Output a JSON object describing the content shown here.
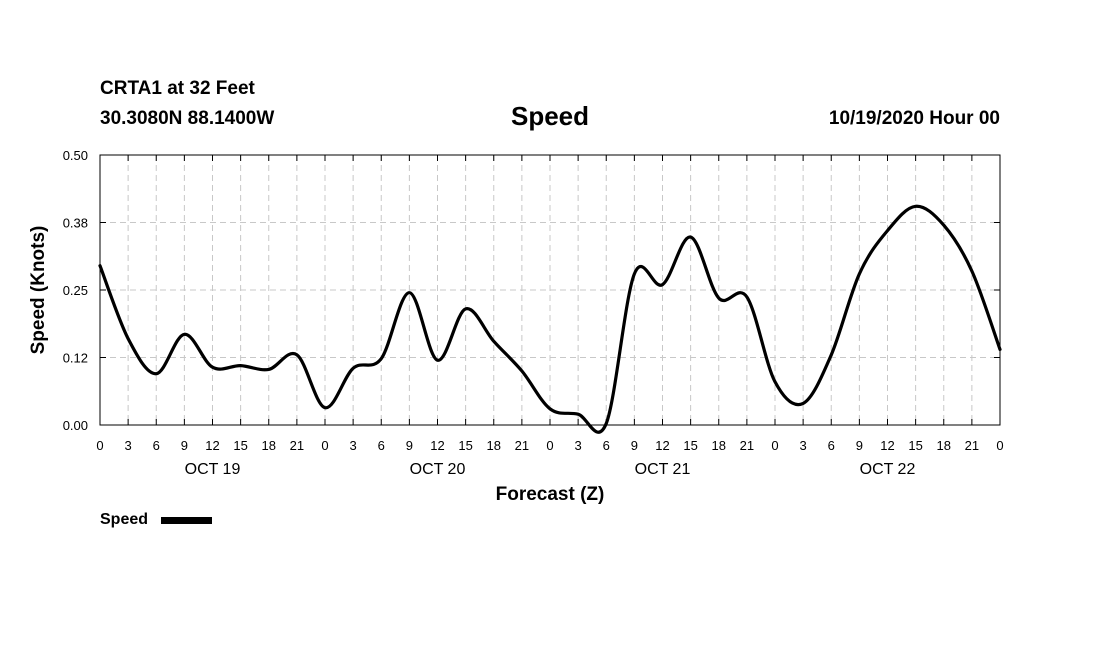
{
  "header": {
    "station": "CRTA1 at 32 Feet",
    "location": "30.3080N 88.1400W",
    "title": "Speed",
    "datetime": "10/19/2020 Hour 00"
  },
  "chart_data": {
    "type": "line",
    "title": "Speed",
    "xlabel": "Forecast (Z)",
    "ylabel": "Speed (Knots)",
    "xlim": [
      0,
      96
    ],
    "ylim": [
      0,
      0.5
    ],
    "grid": true,
    "y_ticks": [
      0,
      0.125,
      0.25,
      0.375,
      0.5
    ],
    "y_tick_labels": [
      "0.00",
      "0.12",
      "0.25",
      "0.38",
      "0.50"
    ],
    "x_ticks": [
      0,
      3,
      6,
      9,
      12,
      15,
      18,
      21,
      24,
      27,
      30,
      33,
      36,
      39,
      42,
      45,
      48,
      51,
      54,
      57,
      60,
      63,
      66,
      69,
      72,
      75,
      78,
      81,
      84,
      87,
      90,
      93,
      96
    ],
    "x_tick_labels": [
      "0",
      "3",
      "6",
      "9",
      "12",
      "15",
      "18",
      "21",
      "0",
      "3",
      "6",
      "9",
      "12",
      "15",
      "18",
      "21",
      "0",
      "3",
      "6",
      "9",
      "12",
      "15",
      "18",
      "21",
      "0",
      "3",
      "6",
      "9",
      "12",
      "15",
      "18",
      "21",
      "0"
    ],
    "date_labels": [
      {
        "hour": 12,
        "label": "OCT 19"
      },
      {
        "hour": 36,
        "label": "OCT 20"
      },
      {
        "hour": 60,
        "label": "OCT 21"
      },
      {
        "hour": 84,
        "label": "OCT 22"
      }
    ],
    "legend": {
      "label": "Speed",
      "color": "#000000",
      "placement": "bottom-left"
    },
    "series": [
      {
        "color": "#000000",
        "x": [
          0,
          3,
          6,
          9,
          12,
          15,
          18,
          21,
          24,
          27,
          30,
          33,
          36,
          39,
          42,
          45,
          48,
          51,
          54,
          57,
          60,
          63,
          66,
          69,
          72,
          75,
          78,
          81,
          84,
          87,
          90,
          93,
          96
        ],
        "y": [
          0.295,
          0.16,
          0.095,
          0.168,
          0.107,
          0.11,
          0.103,
          0.13,
          0.032,
          0.105,
          0.123,
          0.245,
          0.12,
          0.215,
          0.155,
          0.1,
          0.03,
          0.02,
          0.003,
          0.28,
          0.26,
          0.348,
          0.235,
          0.237,
          0.08,
          0.04,
          0.13,
          0.28,
          0.36,
          0.405,
          0.37,
          0.285,
          0.14
        ]
      }
    ]
  }
}
